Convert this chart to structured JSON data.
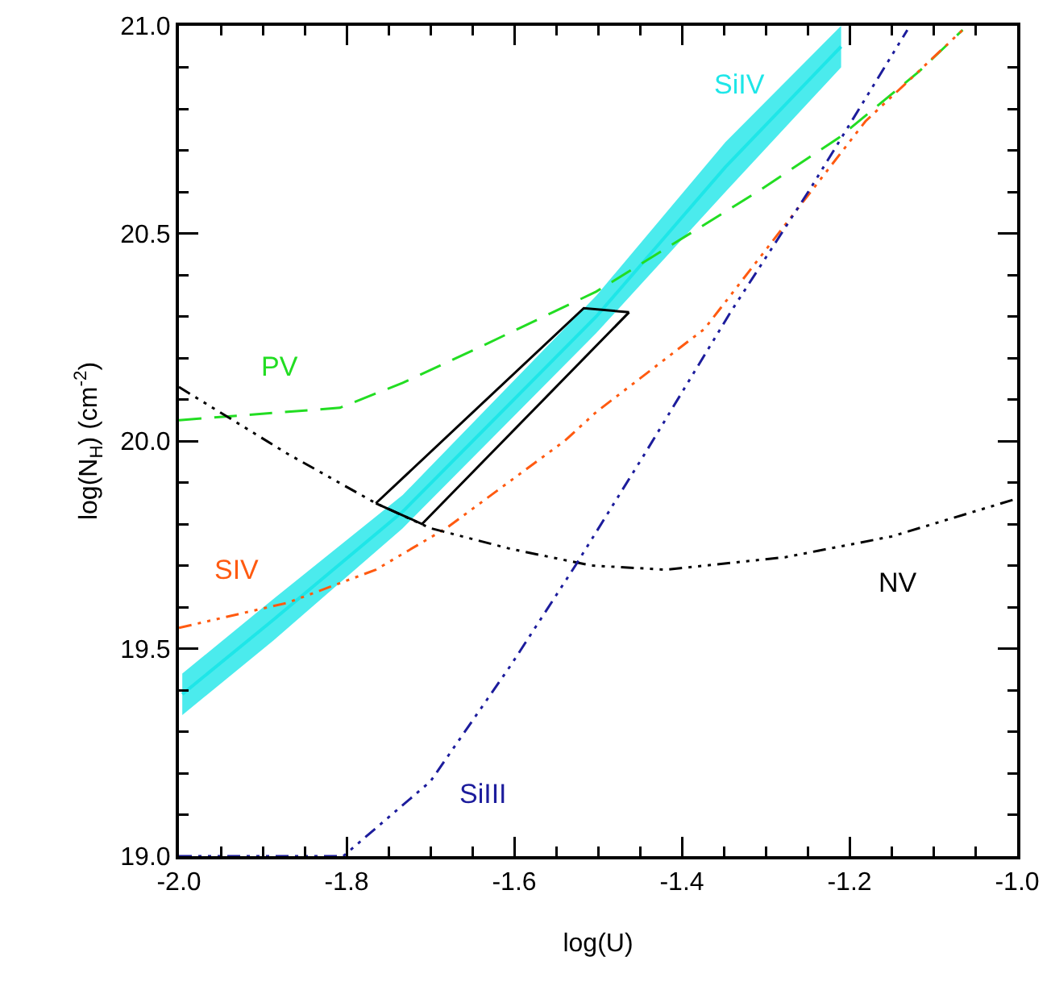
{
  "chart_data": {
    "type": "line",
    "xlabel": "log(U)",
    "ylabel": "log(N$_{H}$) (cm$^{-2}$)",
    "xlim": [
      -2.0,
      -1.0
    ],
    "ylim": [
      19.0,
      21.0
    ],
    "xticks": [
      {
        "value": -2.0,
        "label": "-2.0"
      },
      {
        "value": -1.8,
        "label": "-1.8"
      },
      {
        "value": -1.6,
        "label": "-1.6"
      },
      {
        "value": -1.4,
        "label": "-1.4"
      },
      {
        "value": -1.2,
        "label": "-1.2"
      },
      {
        "value": -1.0,
        "label": "-1.0"
      }
    ],
    "yticks": [
      {
        "value": 19.0,
        "label": "19.0"
      },
      19.5,
      {
        "value": 20.0,
        "label": "20.0"
      },
      20.5,
      {
        "value": 21.0,
        "label": "21.0"
      }
    ],
    "grid": false,
    "legend": false,
    "series": [
      {
        "name": "SiIV",
        "color": "#1ee6e8",
        "x": [
          -1.996,
          -1.887,
          -1.733,
          -1.502,
          -1.348,
          -1.21
        ],
        "values": [
          19.39,
          19.57,
          19.83,
          20.3,
          20.66,
          20.95
        ],
        "lower": [
          19.34,
          19.52,
          19.79,
          20.26,
          20.6,
          20.9
        ],
        "upper": [
          19.44,
          19.62,
          19.87,
          20.35,
          20.72,
          21.0
        ]
      },
      {
        "name": "PV",
        "color": "#22dd22",
        "line_style": "dashed",
        "x": [
          -2.0,
          -1.808,
          -1.733,
          -1.637,
          -1.502,
          -1.406,
          -1.31,
          -1.213,
          -1.117,
          -1.065
        ],
        "values": [
          20.05,
          20.08,
          20.14,
          20.23,
          20.36,
          20.48,
          20.6,
          20.73,
          20.89,
          20.99
        ]
      },
      {
        "name": "SIV",
        "color": "#ff5a10",
        "line_style": "dotted",
        "x": [
          -2.0,
          -1.871,
          -1.765,
          -1.681,
          -1.54,
          -1.502,
          -1.373,
          -1.277,
          -1.181,
          -1.065
        ],
        "values": [
          19.55,
          19.61,
          19.69,
          19.79,
          20.0,
          20.07,
          20.27,
          20.52,
          20.77,
          20.99
        ]
      },
      {
        "name": "NV",
        "color": "#000000",
        "line_style": "dotted",
        "x": [
          -2.0,
          -1.871,
          -1.765,
          -1.7,
          -1.604,
          -1.508,
          -1.419,
          -1.277,
          -1.15,
          -1.002
        ],
        "values": [
          20.13,
          19.97,
          19.85,
          19.79,
          19.74,
          19.7,
          19.69,
          19.72,
          19.77,
          19.86
        ]
      },
      {
        "name": "SiIII",
        "color": "#1c1c9c",
        "line_style": "dotted",
        "x": [
          -2.0,
          -1.804,
          -1.7,
          -1.604,
          -1.527,
          -1.444,
          -1.342,
          -1.246,
          -1.131
        ],
        "values": [
          19.0,
          19.0,
          19.18,
          19.46,
          19.7,
          19.97,
          20.31,
          20.61,
          20.99
        ]
      },
      {
        "color": "#000000",
        "line_style": "solid",
        "x": [
          -1.765,
          -1.517,
          -1.463
        ],
        "values": [
          19.85,
          20.32,
          20.31
        ]
      },
      {
        "color": "#000000",
        "line_style": "solid",
        "x": [
          -1.765,
          -1.71,
          -1.463
        ],
        "values": [
          19.85,
          19.8,
          20.31
        ]
      }
    ]
  }
}
